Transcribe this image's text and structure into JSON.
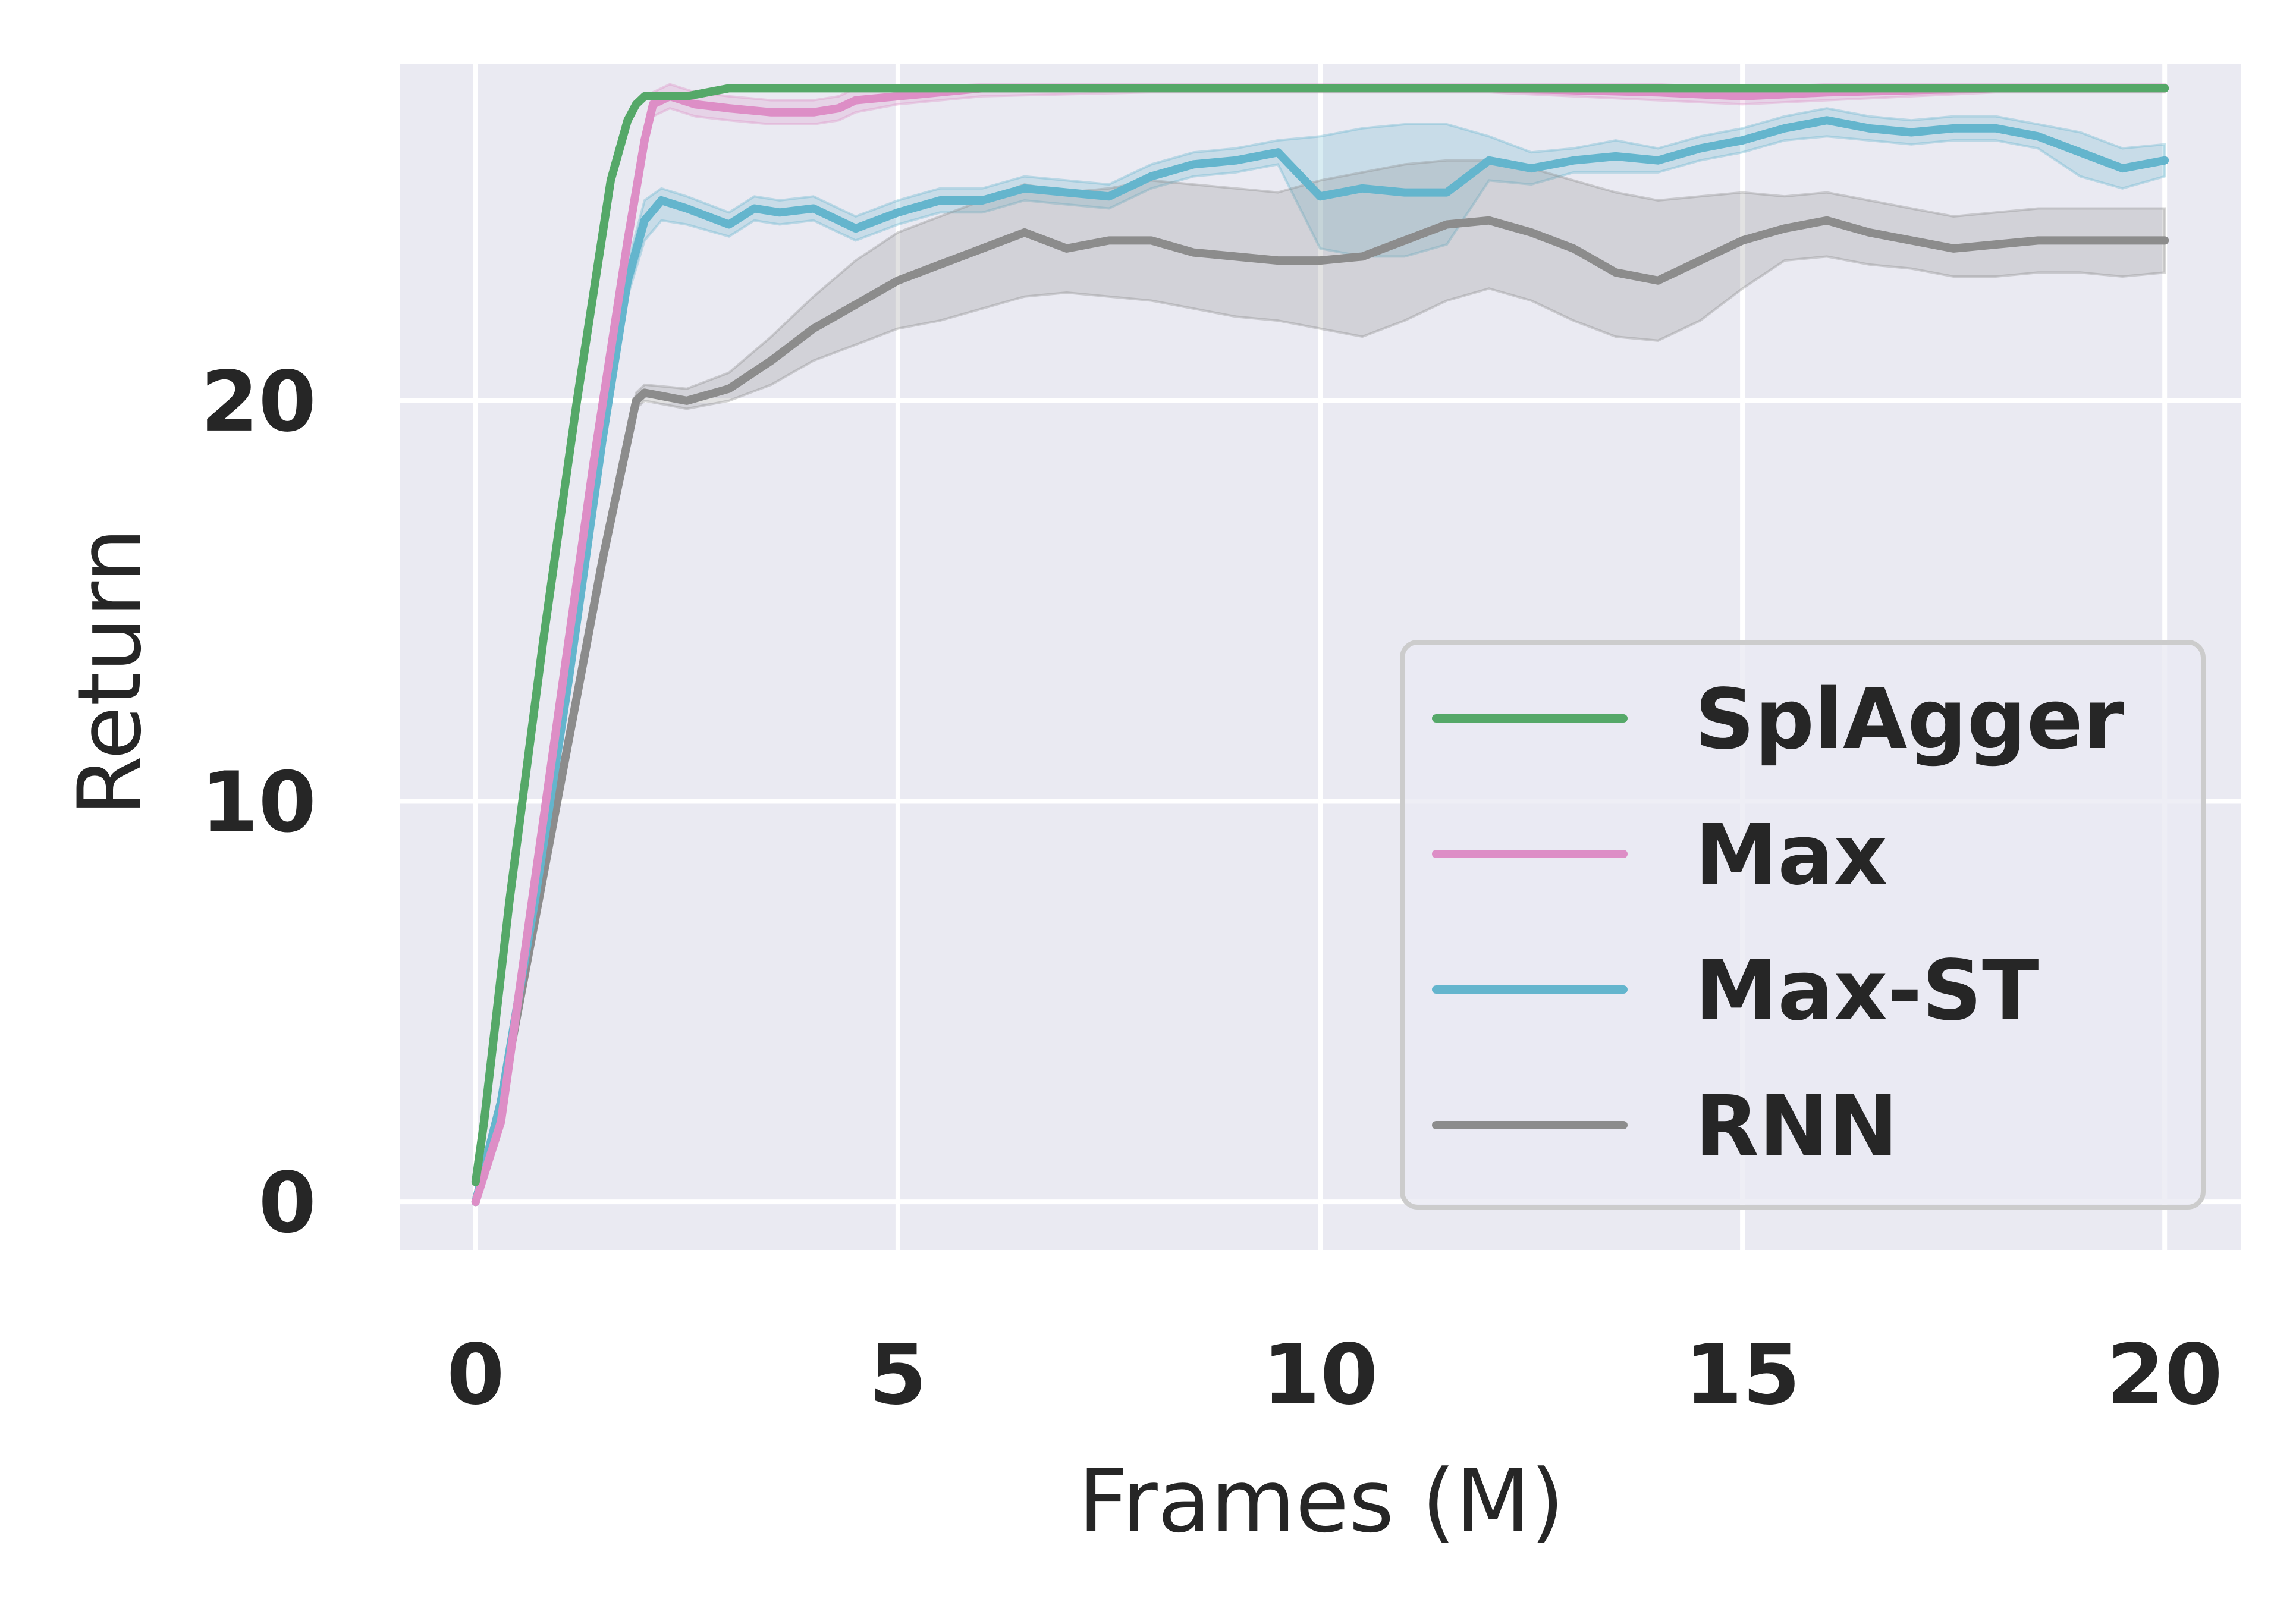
{
  "chart_data": {
    "type": "line",
    "xlabel": "Frames (M)",
    "ylabel": "Return",
    "xlim": [
      -0.9,
      20.9
    ],
    "ylim": [
      -1.2,
      28.4
    ],
    "xticks": [
      0,
      5,
      10,
      15,
      20
    ],
    "yticks": [
      0,
      10,
      20
    ],
    "grid": true,
    "legend_position": "lower-right",
    "background": "#eaeaf2",
    "series": [
      {
        "name": "SplAgger",
        "color": "#55a868",
        "x": [
          0,
          0.1,
          0.4,
          0.8,
          1.2,
          1.6,
          1.8,
          1.9,
          2.0,
          2.2,
          2.5,
          3.0,
          4.0,
          5.0,
          6.0,
          8.0,
          10.0,
          12.0,
          14.0,
          16.0,
          18.0,
          20.0
        ],
        "y": [
          0.5,
          2.0,
          7.5,
          14.0,
          20.0,
          25.5,
          27.0,
          27.4,
          27.6,
          27.6,
          27.6,
          27.8,
          27.8,
          27.8,
          27.8,
          27.8,
          27.8,
          27.8,
          27.8,
          27.8,
          27.8,
          27.8
        ],
        "lower": [],
        "upper": []
      },
      {
        "name": "Max",
        "color": "#dd8ec6",
        "x": [
          0,
          0.3,
          0.6,
          1.0,
          1.4,
          1.8,
          2.0,
          2.1,
          2.3,
          2.6,
          3.0,
          3.5,
          4.0,
          4.3,
          4.5,
          5.0,
          6.0,
          8.0,
          10.0,
          12.0,
          14.0,
          15.0,
          16.0,
          18.0,
          20.0
        ],
        "y": [
          0,
          2.0,
          6.5,
          12.5,
          18.5,
          24.0,
          26.5,
          27.4,
          27.6,
          27.4,
          27.3,
          27.2,
          27.2,
          27.3,
          27.5,
          27.6,
          27.8,
          27.8,
          27.8,
          27.8,
          27.7,
          27.6,
          27.7,
          27.8,
          27.8
        ],
        "lower": [
          0,
          1.9,
          6.3,
          12.2,
          18.2,
          23.6,
          26.2,
          27.1,
          27.3,
          27.1,
          27.0,
          26.9,
          26.9,
          27.0,
          27.2,
          27.4,
          27.6,
          27.7,
          27.7,
          27.7,
          27.5,
          27.4,
          27.5,
          27.7,
          27.7
        ],
        "upper": [
          0,
          2.1,
          6.7,
          12.8,
          18.8,
          24.4,
          26.8,
          27.7,
          27.9,
          27.7,
          27.6,
          27.5,
          27.5,
          27.6,
          27.8,
          27.8,
          27.9,
          27.9,
          27.9,
          27.9,
          27.9,
          27.8,
          27.9,
          27.9,
          27.9
        ],
        "below": "SplAgger"
      },
      {
        "name": "Max-ST",
        "color": "#64b5cd",
        "x": [
          0,
          0.3,
          0.7,
          1.1,
          1.5,
          1.8,
          2.0,
          2.2,
          2.5,
          3.0,
          3.3,
          3.6,
          4.0,
          4.5,
          5.0,
          5.5,
          6.0,
          6.5,
          7.0,
          7.5,
          8.0,
          8.5,
          9.0,
          9.5,
          10.0,
          10.5,
          11.0,
          11.5,
          12.0,
          12.5,
          13.0,
          13.5,
          14.0,
          14.5,
          15.0,
          15.5,
          16.0,
          16.5,
          17.0,
          17.5,
          18.0,
          18.5,
          19.0,
          19.5,
          20.0
        ],
        "y": [
          0,
          2.5,
          7.5,
          13.0,
          19.0,
          23.0,
          24.5,
          25.0,
          24.8,
          24.4,
          24.8,
          24.7,
          24.8,
          24.3,
          24.7,
          25.0,
          25.0,
          25.3,
          25.2,
          25.1,
          25.6,
          25.9,
          26.0,
          26.2,
          25.1,
          25.3,
          25.2,
          25.2,
          26.0,
          25.8,
          26.0,
          26.1,
          26.0,
          26.3,
          26.5,
          26.8,
          27.0,
          26.8,
          26.7,
          26.8,
          26.8,
          26.6,
          26.2,
          25.8,
          26.0
        ],
        "lower": [
          0,
          2.4,
          7.2,
          12.7,
          18.7,
          22.6,
          24.0,
          24.5,
          24.4,
          24.1,
          24.5,
          24.4,
          24.5,
          24.0,
          24.4,
          24.7,
          24.7,
          25.0,
          24.9,
          24.8,
          25.3,
          25.6,
          25.7,
          25.9,
          23.8,
          23.6,
          23.6,
          23.9,
          25.5,
          25.4,
          25.7,
          25.7,
          25.7,
          26.0,
          26.2,
          26.5,
          26.6,
          26.5,
          26.4,
          26.5,
          26.5,
          26.3,
          25.6,
          25.3,
          25.6
        ],
        "upper": [
          0,
          2.6,
          7.8,
          13.3,
          19.3,
          23.4,
          25.0,
          25.3,
          25.1,
          24.7,
          25.1,
          25.0,
          25.1,
          24.6,
          25.0,
          25.3,
          25.3,
          25.6,
          25.5,
          25.4,
          25.9,
          26.2,
          26.3,
          26.5,
          26.6,
          26.8,
          26.9,
          26.9,
          26.6,
          26.2,
          26.3,
          26.5,
          26.3,
          26.6,
          26.8,
          27.1,
          27.3,
          27.1,
          27.0,
          27.1,
          27.1,
          26.9,
          26.7,
          26.3,
          26.4
        ]
      },
      {
        "name": "RNN",
        "color": "#8c8c8c",
        "x": [
          0,
          0.3,
          0.7,
          1.1,
          1.5,
          1.9,
          2.0,
          2.5,
          3.0,
          3.5,
          4.0,
          4.5,
          5.0,
          5.5,
          6.0,
          6.5,
          7.0,
          7.5,
          8.0,
          8.5,
          9.0,
          9.5,
          10.0,
          10.5,
          11.0,
          11.5,
          12.0,
          12.5,
          13.0,
          13.5,
          14.0,
          14.5,
          15.0,
          15.5,
          16.0,
          16.5,
          17.0,
          17.5,
          18.0,
          18.5,
          19.0,
          19.5,
          20.0
        ],
        "y": [
          0,
          2.5,
          7.0,
          11.5,
          16.0,
          20.0,
          20.2,
          20.0,
          20.3,
          21.0,
          21.8,
          22.4,
          23.0,
          23.4,
          23.8,
          24.2,
          23.8,
          24.0,
          24.0,
          23.7,
          23.6,
          23.5,
          23.5,
          23.6,
          24.0,
          24.4,
          24.5,
          24.2,
          23.8,
          23.2,
          23.0,
          23.5,
          24.0,
          24.3,
          24.5,
          24.2,
          24.0,
          23.8,
          23.9,
          24.0,
          24.0,
          24.0,
          24.0
        ],
        "lower": [
          0,
          2.4,
          6.8,
          11.3,
          15.8,
          19.8,
          20.0,
          19.8,
          20.0,
          20.4,
          21.0,
          21.4,
          21.8,
          22.0,
          22.3,
          22.6,
          22.7,
          22.6,
          22.5,
          22.3,
          22.1,
          22.0,
          21.8,
          21.6,
          22.0,
          22.5,
          22.8,
          22.5,
          22.0,
          21.6,
          21.5,
          22.0,
          22.8,
          23.5,
          23.6,
          23.4,
          23.3,
          23.1,
          23.1,
          23.2,
          23.2,
          23.1,
          23.2
        ],
        "upper": [
          0,
          2.6,
          7.2,
          11.7,
          16.2,
          20.2,
          20.4,
          20.3,
          20.7,
          21.6,
          22.6,
          23.5,
          24.2,
          24.6,
          25.0,
          25.4,
          25.2,
          25.3,
          25.5,
          25.4,
          25.3,
          25.2,
          25.5,
          25.7,
          25.9,
          26.0,
          26.0,
          25.8,
          25.5,
          25.2,
          25.0,
          25.1,
          25.2,
          25.1,
          25.2,
          25.0,
          24.8,
          24.6,
          24.7,
          24.8,
          24.8,
          24.8,
          24.8
        ]
      }
    ]
  }
}
